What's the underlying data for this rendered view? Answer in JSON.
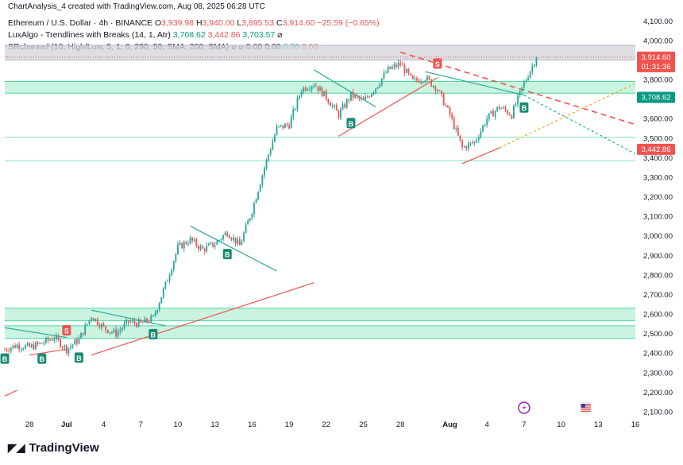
{
  "top_note": "ChartAnalysis_4 created with TradingView.com, Aug 08, 2025 06:28 UTC",
  "legend": {
    "symbol": "Ethereum / U.S. Dollar · 4h · BINANCE",
    "o_label": "O",
    "o": "3,939.98",
    "h_label": "H",
    "h": "3,940.00",
    "l_label": "L",
    "l": "3,895.53",
    "c_label": "C",
    "c": "3,914.60",
    "change": "−25.59 (−0.65%)",
    "lux_name": "LuxAlgo - Trendlines with Breaks (14, 1, Atr)",
    "lux_v1": "3,708.62",
    "lux_v2": "3,442.86",
    "lux_v3": "3,703.57",
    "src_name": "SRchannel (10, High/Low, 5, 1, 6, 290, 50, SMA, 200, SMA)",
    "src_v": [
      "0.00",
      "0.00",
      "0.00",
      "0.00"
    ],
    "eye_icon": "eye-slash-icon"
  },
  "price_tags": {
    "current": "3,914.60",
    "countdown": "01:31:36",
    "lux_upper": "3,708.62",
    "lux_lower": "3,442.86"
  },
  "footer": {
    "logo_text": "TradingView",
    "logo_icon": "tradingview-logo-icon"
  },
  "colors": {
    "up": "#26a69a",
    "down": "#ef5350",
    "zone_green": "#b2f0d1",
    "zone_gray": "#d1d4dc",
    "trend_teal": "#26a69a",
    "trend_red": "#ef5350",
    "buy_label": "#1b8a73",
    "sell_label": "#ef5350"
  },
  "chart_data": {
    "type": "candlestick",
    "timeframe": "4h",
    "ylim": [
      2100,
      4150
    ],
    "y_ticks": [
      2100,
      2200,
      2300,
      2400,
      2500,
      2600,
      2700,
      2800,
      2900,
      3000,
      3100,
      3200,
      3300,
      3400,
      3500,
      3600,
      3700,
      3800,
      3900,
      4000,
      4100
    ],
    "y_tick_labels": [
      "2,100.00",
      "2,200.00",
      "2,300.00",
      "2,400.00",
      "2,500.00",
      "2,600.00",
      "2,700.00",
      "2,800.00",
      "2,900.00",
      "3,000.00",
      "3,100.00",
      "3,200.00",
      "3,300.00",
      "3,400.00",
      "3,500.00",
      "3,600.00",
      "3,700.00",
      "3,800.00",
      "3,900.00",
      "4,000.00",
      "4,100.00"
    ],
    "x_start": "2025-06-26",
    "x_end": "2025-08-16",
    "x_ticks": [
      {
        "date": "2025-06-28",
        "label": "28"
      },
      {
        "date": "2025-07-01",
        "label": "Jul"
      },
      {
        "date": "2025-07-04",
        "label": "4"
      },
      {
        "date": "2025-07-07",
        "label": "7"
      },
      {
        "date": "2025-07-10",
        "label": "10"
      },
      {
        "date": "2025-07-13",
        "label": "13"
      },
      {
        "date": "2025-07-16",
        "label": "16"
      },
      {
        "date": "2025-07-19",
        "label": "19"
      },
      {
        "date": "2025-07-22",
        "label": "22"
      },
      {
        "date": "2025-07-25",
        "label": "25"
      },
      {
        "date": "2025-07-28",
        "label": "28"
      },
      {
        "date": "2025-08-01",
        "label": "Aug"
      },
      {
        "date": "2025-08-04",
        "label": "4"
      },
      {
        "date": "2025-08-07",
        "label": "7"
      },
      {
        "date": "2025-08-10",
        "label": "10"
      },
      {
        "date": "2025-08-13",
        "label": "13"
      },
      {
        "date": "2025-08-16",
        "label": "16"
      }
    ],
    "close_path": [
      [
        "2025-06-26",
        2420
      ],
      [
        "2025-06-27",
        2440
      ],
      [
        "2025-06-28",
        2430
      ],
      [
        "2025-06-29",
        2450
      ],
      [
        "2025-06-30",
        2480
      ],
      [
        "2025-07-01",
        2420
      ],
      [
        "2025-07-02",
        2470
      ],
      [
        "2025-07-03",
        2590
      ],
      [
        "2025-07-04",
        2530
      ],
      [
        "2025-07-05",
        2500
      ],
      [
        "2025-07-06",
        2560
      ],
      [
        "2025-07-07",
        2550
      ],
      [
        "2025-07-08",
        2580
      ],
      [
        "2025-07-09",
        2750
      ],
      [
        "2025-07-10",
        2940
      ],
      [
        "2025-07-11",
        2980
      ],
      [
        "2025-07-12",
        2930
      ],
      [
        "2025-07-13",
        2960
      ],
      [
        "2025-07-14",
        3020
      ],
      [
        "2025-07-15",
        2950
      ],
      [
        "2025-07-16",
        3130
      ],
      [
        "2025-07-17",
        3350
      ],
      [
        "2025-07-18",
        3550
      ],
      [
        "2025-07-19",
        3570
      ],
      [
        "2025-07-20",
        3750
      ],
      [
        "2025-07-21",
        3780
      ],
      [
        "2025-07-22",
        3710
      ],
      [
        "2025-07-23",
        3620
      ],
      [
        "2025-07-24",
        3720
      ],
      [
        "2025-07-25",
        3690
      ],
      [
        "2025-07-26",
        3760
      ],
      [
        "2025-07-27",
        3850
      ],
      [
        "2025-07-28",
        3880
      ],
      [
        "2025-07-29",
        3790
      ],
      [
        "2025-07-30",
        3810
      ],
      [
        "2025-07-31",
        3750
      ],
      [
        "2025-08-01",
        3620
      ],
      [
        "2025-08-02",
        3450
      ],
      [
        "2025-08-03",
        3480
      ],
      [
        "2025-08-04",
        3600
      ],
      [
        "2025-08-05",
        3660
      ],
      [
        "2025-08-06",
        3620
      ],
      [
        "2025-08-07",
        3780
      ],
      [
        "2025-08-08",
        3914.6
      ]
    ],
    "support_resistance_zones": [
      {
        "kind": "resistance",
        "low": 3900,
        "high": 3975,
        "color": "gray"
      },
      {
        "kind": "support",
        "low": 3730,
        "high": 3790,
        "color": "green"
      },
      {
        "kind": "support",
        "low": 2475,
        "high": 2540,
        "color": "green"
      },
      {
        "kind": "support",
        "low": 2565,
        "high": 2630,
        "color": "green"
      }
    ],
    "levels": [
      3505,
      3385
    ],
    "trendlines": [
      {
        "style": "solid",
        "color": "teal",
        "from": [
          "2025-06-26",
          2530
        ],
        "to": [
          "2025-07-01",
          2480
        ]
      },
      {
        "style": "solid",
        "color": "teal",
        "from": [
          "2025-07-03",
          2620
        ],
        "to": [
          "2025-07-09",
          2540
        ]
      },
      {
        "style": "solid",
        "color": "teal",
        "from": [
          "2025-07-11",
          3050
        ],
        "to": [
          "2025-07-18",
          2820
        ]
      },
      {
        "style": "solid",
        "color": "teal",
        "from": [
          "2025-07-21",
          3850
        ],
        "to": [
          "2025-07-26",
          3660
        ]
      },
      {
        "style": "solid",
        "color": "teal",
        "from": [
          "2025-07-30",
          3840
        ],
        "to": [
          "2025-08-07",
          3720
        ]
      },
      {
        "style": "dashed",
        "color": "teal",
        "from": [
          "2025-08-07",
          3720
        ],
        "to": [
          "2025-08-16",
          3420
        ]
      },
      {
        "style": "dashed",
        "color": "red",
        "from": [
          "2025-07-28",
          3940
        ],
        "to": [
          "2025-08-16",
          3570
        ]
      },
      {
        "style": "solid",
        "color": "red",
        "from": [
          "2025-06-26",
          2180
        ],
        "to": [
          "2025-06-27",
          2210
        ]
      },
      {
        "style": "solid",
        "color": "red",
        "from": [
          "2025-06-28",
          2390
        ],
        "to": [
          "2025-07-01",
          2420
        ]
      },
      {
        "style": "solid",
        "color": "red",
        "from": [
          "2025-07-03",
          2390
        ],
        "to": [
          "2025-07-21",
          2760
        ]
      },
      {
        "style": "solid",
        "color": "red",
        "from": [
          "2025-07-23",
          3510
        ],
        "to": [
          "2025-07-31",
          3810
        ]
      },
      {
        "style": "solid",
        "color": "red",
        "from": [
          "2025-08-02",
          3370
        ],
        "to": [
          "2025-08-05",
          3450
        ]
      },
      {
        "style": "dashed",
        "color": "orange",
        "from": [
          "2025-08-05",
          3450
        ],
        "to": [
          "2025-08-16",
          3780
        ]
      }
    ],
    "signals": [
      {
        "type": "B",
        "date": "2025-06-26",
        "price": 2370
      },
      {
        "type": "B",
        "date": "2025-06-29",
        "price": 2370
      },
      {
        "type": "S",
        "date": "2025-07-01",
        "price": 2515
      },
      {
        "type": "B",
        "date": "2025-07-02",
        "price": 2375
      },
      {
        "type": "B",
        "date": "2025-07-08",
        "price": 2495
      },
      {
        "type": "B",
        "date": "2025-07-14",
        "price": 2905
      },
      {
        "type": "B",
        "date": "2025-07-24",
        "price": 3575
      },
      {
        "type": "S",
        "date": "2025-07-31",
        "price": 3880
      },
      {
        "type": "B",
        "date": "2025-08-07",
        "price": 3655
      }
    ],
    "event_icons": [
      {
        "date": "2025-08-07",
        "icon": "lightning-icon"
      },
      {
        "date": "2025-08-12",
        "icon": "us-flag-icon"
      }
    ]
  }
}
